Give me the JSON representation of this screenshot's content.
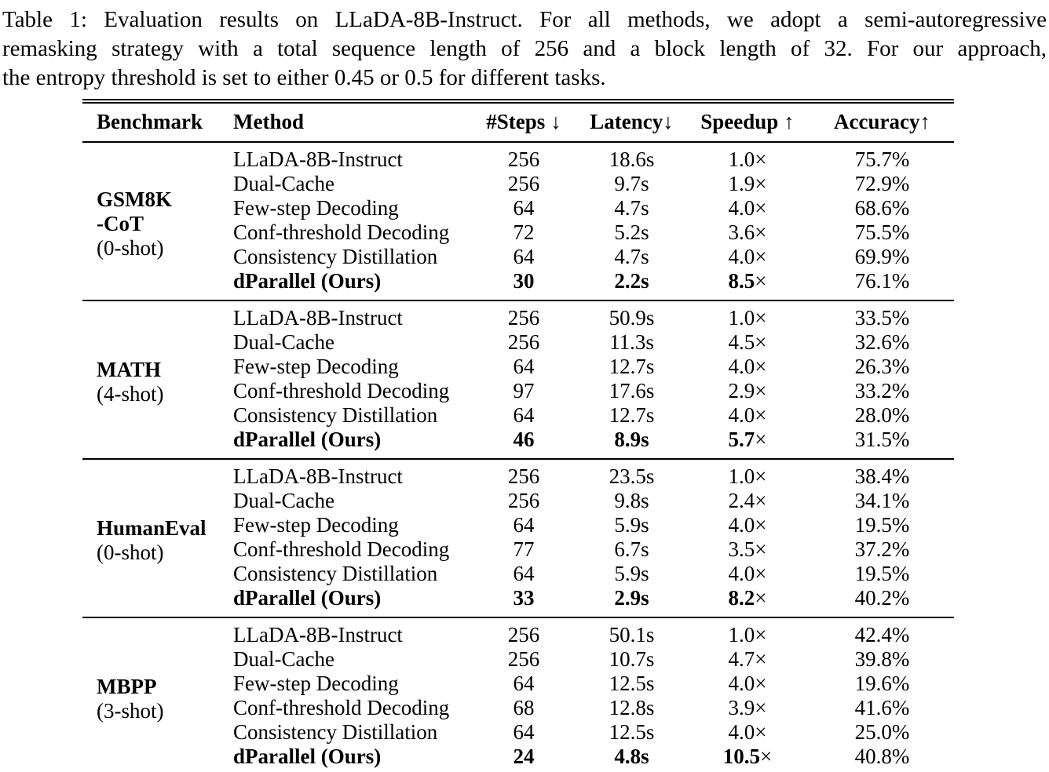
{
  "colors": {
    "text": "#000000",
    "background": "#ffffff"
  },
  "caption_lines": [
    "Table 1: Evaluation results on LLaDA-8B-Instruct. For all methods, we adopt a semi-autoregressive",
    "remasking strategy with a total sequence length of 256 and a block length of 32. For our approach,",
    "the entropy threshold is set to either 0.45 or 0.5 for different tasks."
  ],
  "table": {
    "times_symbol": "×",
    "headers": [
      {
        "label": "Benchmark"
      },
      {
        "label": "Method"
      },
      {
        "label": "#Steps",
        "arrow": "↓"
      },
      {
        "label": "Latency",
        "arrow": "↓"
      },
      {
        "label": "Speedup",
        "arrow": "↑"
      },
      {
        "label": "Accuracy",
        "arrow": "↑"
      }
    ],
    "sections": [
      {
        "benchmark": {
          "name_lines": [
            "GSM8K",
            "-CoT"
          ],
          "shot": "(0-shot)"
        },
        "rows": [
          {
            "method": "LLaDA-8B-Instruct",
            "steps": "256",
            "latency": "18.6s",
            "speedup": "1.0",
            "accuracy": "75.7%"
          },
          {
            "method": "Dual-Cache",
            "steps": "256",
            "latency": "9.7s",
            "speedup": "1.9",
            "accuracy": "72.9%"
          },
          {
            "method": "Few-step Decoding",
            "steps": "64",
            "latency": "4.7s",
            "speedup": "4.0",
            "accuracy": "68.6%"
          },
          {
            "method": "Conf-threshold Decoding",
            "steps": "72",
            "latency": "5.2s",
            "speedup": "3.6",
            "accuracy": "75.5%"
          },
          {
            "method": "Consistency Distillation",
            "steps": "64",
            "latency": "4.7s",
            "speedup": "4.0",
            "accuracy": "69.9%"
          },
          {
            "method": "dParallel (Ours)",
            "steps": "30",
            "latency": "2.2s",
            "speedup": "8.5",
            "accuracy": "76.1%"
          }
        ]
      },
      {
        "benchmark": {
          "name_lines": [
            "MATH"
          ],
          "shot": "(4-shot)"
        },
        "rows": [
          {
            "method": "LLaDA-8B-Instruct",
            "steps": "256",
            "latency": "50.9s",
            "speedup": "1.0",
            "accuracy": "33.5%"
          },
          {
            "method": "Dual-Cache",
            "steps": "256",
            "latency": "11.3s",
            "speedup": "4.5",
            "accuracy": "32.6%"
          },
          {
            "method": "Few-step Decoding",
            "steps": "64",
            "latency": "12.7s",
            "speedup": "4.0",
            "accuracy": "26.3%"
          },
          {
            "method": "Conf-threshold Decoding",
            "steps": "97",
            "latency": "17.6s",
            "speedup": "2.9",
            "accuracy": "33.2%"
          },
          {
            "method": "Consistency Distillation",
            "steps": "64",
            "latency": "12.7s",
            "speedup": "4.0",
            "accuracy": "28.0%"
          },
          {
            "method": "dParallel (Ours)",
            "steps": "46",
            "latency": "8.9s",
            "speedup": "5.7",
            "accuracy": "31.5%"
          }
        ]
      },
      {
        "benchmark": {
          "name_lines": [
            "HumanEval"
          ],
          "shot": "(0-shot)"
        },
        "rows": [
          {
            "method": "LLaDA-8B-Instruct",
            "steps": "256",
            "latency": "23.5s",
            "speedup": "1.0",
            "accuracy": "38.4%"
          },
          {
            "method": "Dual-Cache",
            "steps": "256",
            "latency": "9.8s",
            "speedup": "2.4",
            "accuracy": "34.1%"
          },
          {
            "method": "Few-step Decoding",
            "steps": "64",
            "latency": "5.9s",
            "speedup": "4.0",
            "accuracy": "19.5%"
          },
          {
            "method": "Conf-threshold Decoding",
            "steps": "77",
            "latency": "6.7s",
            "speedup": "3.5",
            "accuracy": "37.2%"
          },
          {
            "method": "Consistency Distillation",
            "steps": "64",
            "latency": "5.9s",
            "speedup": "4.0",
            "accuracy": "19.5%"
          },
          {
            "method": "dParallel (Ours)",
            "steps": "33",
            "latency": "2.9s",
            "speedup": "8.2",
            "accuracy": "40.2%"
          }
        ]
      },
      {
        "benchmark": {
          "name_lines": [
            "MBPP"
          ],
          "shot": "(3-shot)"
        },
        "rows": [
          {
            "method": "LLaDA-8B-Instruct",
            "steps": "256",
            "latency": "50.1s",
            "speedup": "1.0",
            "accuracy": "42.4%"
          },
          {
            "method": "Dual-Cache",
            "steps": "256",
            "latency": "10.7s",
            "speedup": "4.7",
            "accuracy": "39.8%"
          },
          {
            "method": "Few-step Decoding",
            "steps": "64",
            "latency": "12.5s",
            "speedup": "4.0",
            "accuracy": "19.6%"
          },
          {
            "method": "Conf-threshold Decoding",
            "steps": "68",
            "latency": "12.8s",
            "speedup": "3.9",
            "accuracy": "41.6%"
          },
          {
            "method": "Consistency Distillation",
            "steps": "64",
            "latency": "12.5s",
            "speedup": "4.0",
            "accuracy": "25.0%"
          },
          {
            "method": "dParallel (Ours)",
            "steps": "24",
            "latency": "4.8s",
            "speedup": "10.5",
            "accuracy": "40.8%"
          }
        ]
      }
    ]
  }
}
